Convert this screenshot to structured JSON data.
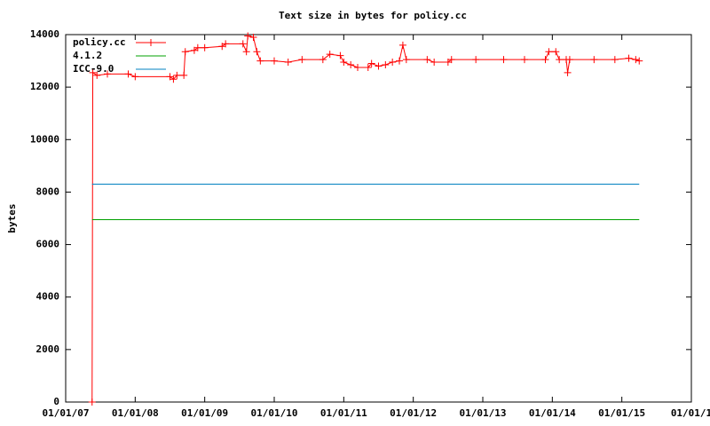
{
  "chart_data": {
    "type": "line",
    "title": "Text size in bytes for policy.cc",
    "y_label": "bytes",
    "xlim": [
      2007,
      2016
    ],
    "xticks": [
      {
        "value": 2007,
        "label": "01/01/07"
      },
      {
        "value": 2008,
        "label": "01/01/08"
      },
      {
        "value": 2009,
        "label": "01/01/09"
      },
      {
        "value": 2010,
        "label": "01/01/10"
      },
      {
        "value": 2011,
        "label": "01/01/11"
      },
      {
        "value": 2012,
        "label": "01/01/12"
      },
      {
        "value": 2013,
        "label": "01/01/13"
      },
      {
        "value": 2014,
        "label": "01/01/14"
      },
      {
        "value": 2015,
        "label": "01/01/15"
      },
      {
        "value": 2016,
        "label": "01/01/1"
      }
    ],
    "ylim": [
      0,
      14000
    ],
    "yticks": [
      0,
      2000,
      4000,
      6000,
      8000,
      10000,
      12000,
      14000
    ],
    "legend": "top-left",
    "series": [
      {
        "name": "policy.cc",
        "color": "#ff0000",
        "markers": true,
        "x": [
          2007.38,
          2007.39,
          2007.45,
          2007.6,
          2007.9,
          2008.0,
          2008.5,
          2008.55,
          2008.6,
          2008.7,
          2008.72,
          2008.85,
          2008.9,
          2009.0,
          2009.25,
          2009.3,
          2009.55,
          2009.6,
          2009.62,
          2009.7,
          2009.75,
          2009.8,
          2010.0,
          2010.2,
          2010.4,
          2010.7,
          2010.8,
          2010.95,
          2011.0,
          2011.1,
          2011.2,
          2011.35,
          2011.4,
          2011.5,
          2011.6,
          2011.7,
          2011.8,
          2011.85,
          2011.9,
          2012.2,
          2012.3,
          2012.5,
          2012.55,
          2012.9,
          2013.3,
          2013.6,
          2013.9,
          2013.95,
          2014.05,
          2014.1,
          2014.2,
          2014.22,
          2014.25,
          2014.6,
          2014.9,
          2015.1,
          2015.2,
          2015.25
        ],
        "values": [
          0,
          12550,
          12450,
          12500,
          12500,
          12400,
          12400,
          12300,
          12450,
          12450,
          13350,
          13400,
          13500,
          13500,
          13550,
          13650,
          13650,
          13350,
          13950,
          13900,
          13350,
          13000,
          13000,
          12950,
          13050,
          13050,
          13250,
          13200,
          12950,
          12850,
          12750,
          12750,
          12900,
          12800,
          12850,
          12950,
          13000,
          13600,
          13050,
          13050,
          12950,
          12950,
          13050,
          13050,
          13050,
          13050,
          13050,
          13350,
          13350,
          13050,
          13050,
          12550,
          13050,
          13050,
          13050,
          13100,
          13050,
          13000
        ]
      },
      {
        "name": "4.1.2",
        "color": "#00a000",
        "markers": false,
        "x": [
          2007.38,
          2015.25
        ],
        "values": [
          6950,
          6950
        ]
      },
      {
        "name": "ICC-9.0",
        "color": "#0080c0",
        "markers": false,
        "x": [
          2007.38,
          2015.25
        ],
        "values": [
          8300,
          8300
        ]
      }
    ]
  }
}
